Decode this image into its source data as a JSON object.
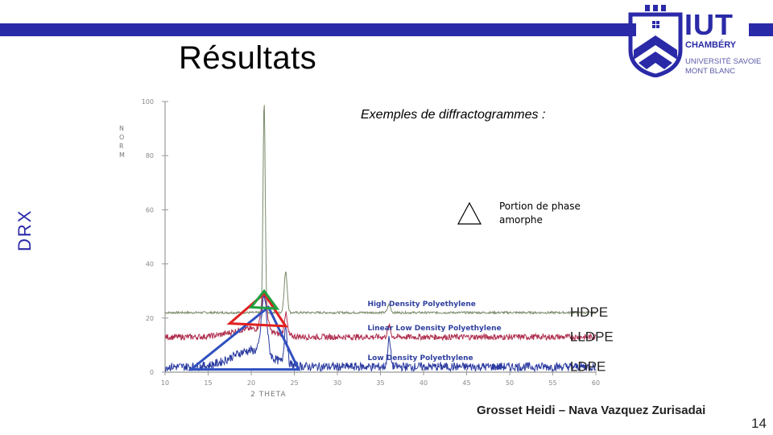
{
  "slide": {
    "title": "Résultats",
    "side_label": "DRX",
    "caption": "Exemples de diffractogrammes :",
    "legend_text": "Portion de phase amorphe",
    "authors": "Grosset Heidi – Nava Vazquez Zurisadai",
    "page_number": "14"
  },
  "logo": {
    "name": "IUT",
    "line1": "CHAMBÉRY",
    "line2": "UNIVERSITÉ SAVOIE",
    "line3": "MONT BLANC",
    "color": "#2a2aa8"
  },
  "colors": {
    "accent": "#2a2aa8",
    "hdpe": "#7a8a6a",
    "lldpe": "#b03050",
    "ldpe": "#2a3aa0",
    "triangle_red": "#e02020",
    "triangle_green": "#20a040",
    "triangle_blue": "#3050c0"
  },
  "chart_data": {
    "type": "line",
    "xlabel": "2 THETA",
    "ylabel": "NORM",
    "xlim": [
      10,
      60
    ],
    "ylim": [
      0,
      100
    ],
    "x_ticks": [
      "10",
      "15",
      "20",
      "25",
      "30",
      "35",
      "40",
      "45",
      "50",
      "55",
      "60"
    ],
    "y_ticks": [
      "0",
      "20",
      "40",
      "60",
      "80",
      "100"
    ],
    "series": [
      {
        "name": "HDPE",
        "label": "High Density Polyethylene",
        "baseline": 22,
        "peaks": [
          [
            21.5,
            100
          ],
          [
            24.0,
            37
          ],
          [
            36.0,
            25
          ]
        ]
      },
      {
        "name": "LLDPE",
        "label": "Linear Low Density Polyethylene",
        "baseline": 13,
        "peaks": [
          [
            21.5,
            27
          ],
          [
            24.0,
            21
          ],
          [
            36.0,
            17
          ]
        ]
      },
      {
        "name": "LDPE",
        "label": "Low Density Polyethylene",
        "baseline": 2,
        "peaks": [
          [
            21.5,
            23
          ],
          [
            24.0,
            16
          ],
          [
            36.0,
            12
          ]
        ]
      }
    ]
  }
}
